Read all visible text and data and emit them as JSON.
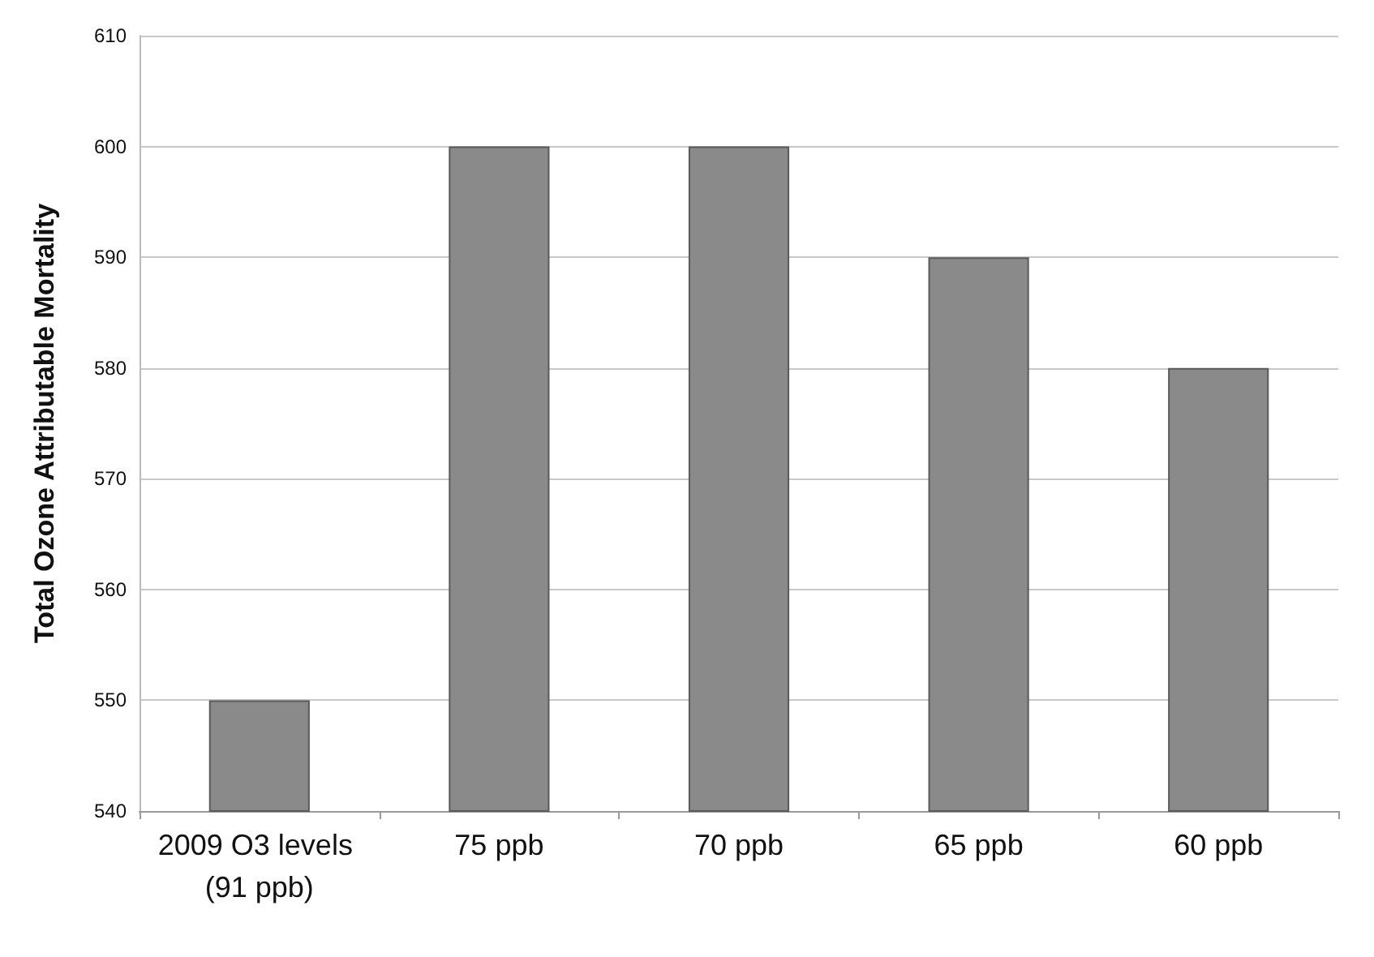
{
  "chart_data": {
    "type": "bar",
    "ylabel": "Total Ozone Attributable Mortality",
    "categories": [
      "2009 O3 levels (91 ppb)",
      "75 ppb",
      "70 ppb",
      "65 ppb",
      "60 ppb"
    ],
    "values": [
      550,
      600,
      600,
      590,
      580
    ],
    "color": "#8a8a8a",
    "ylim": [
      540,
      610
    ],
    "yticks": [
      540,
      550,
      560,
      570,
      580,
      590,
      600,
      610
    ],
    "grid": "y"
  }
}
